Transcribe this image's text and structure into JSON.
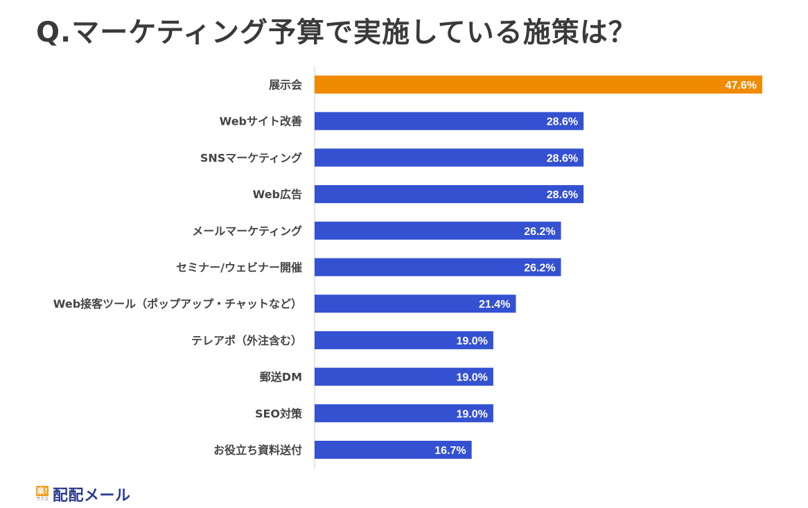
{
  "title": "Q.マーケティング予算で実施している施策は？",
  "chart_data": {
    "type": "bar",
    "orientation": "horizontal",
    "categories": [
      "展示会",
      "Webサイト改善",
      "SNSマーケティング",
      "Web広告",
      "メールマーケティング",
      "セミナー/ウェビナー開催",
      "Web接客ツール（ポップアップ・チャットなど）",
      "テレアポ（外注含む）",
      "郵送DM",
      "SEO対策",
      "お役立ち資料送付"
    ],
    "values": [
      47.6,
      28.6,
      28.6,
      28.6,
      26.2,
      26.2,
      21.4,
      19.0,
      19.0,
      19.0,
      16.7
    ],
    "value_labels": [
      "47.6%",
      "28.6%",
      "28.6%",
      "28.6%",
      "26.2%",
      "26.2%",
      "21.4%",
      "19.0%",
      "19.0%",
      "19.0%",
      "16.7%"
    ],
    "highlight_index": 0,
    "colors": {
      "default": "#3451d1",
      "highlight": "#f08a00",
      "label_text": "#ffffff",
      "category_text": "#444444",
      "axis": "#cccccc"
    },
    "xlim": [
      0,
      47.6
    ],
    "grid": false,
    "legend": "none"
  },
  "footer": {
    "logo_badge": "楽!",
    "logo_sub": "ラクス",
    "logo_text": "配配メール"
  }
}
